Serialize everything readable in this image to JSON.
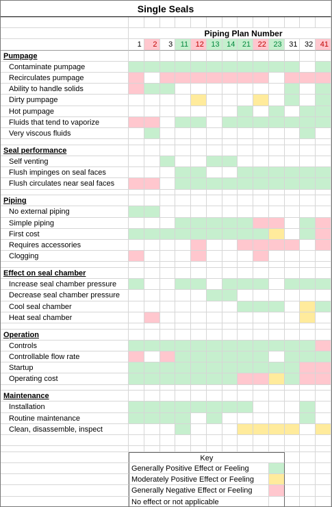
{
  "title": "Single Seals",
  "header": "Piping Plan Number",
  "plans": [
    {
      "number": 1,
      "tone": "n"
    },
    {
      "number": 2,
      "tone": "r"
    },
    {
      "number": 3,
      "tone": "n"
    },
    {
      "number": 11,
      "tone": "g"
    },
    {
      "number": 12,
      "tone": "r"
    },
    {
      "number": 13,
      "tone": "g"
    },
    {
      "number": 14,
      "tone": "g"
    },
    {
      "number": 21,
      "tone": "g"
    },
    {
      "number": 22,
      "tone": "r"
    },
    {
      "number": 23,
      "tone": "g"
    },
    {
      "number": 31,
      "tone": "n"
    },
    {
      "number": 32,
      "tone": "n"
    },
    {
      "number": 41,
      "tone": "r"
    }
  ],
  "sections": [
    {
      "title": "Pumpage",
      "rows": [
        {
          "label": "Contaminate pumpage",
          "cells": [
            "g",
            "g",
            "g",
            "g",
            "g",
            "g",
            "g",
            "g",
            "g",
            "g",
            "g",
            "n",
            "g"
          ]
        },
        {
          "label": "Recirculates pumpage",
          "cells": [
            "r",
            "n",
            "r",
            "r",
            "r",
            "r",
            "r",
            "r",
            "r",
            "n",
            "r",
            "r",
            "r"
          ]
        },
        {
          "label": "Ability to handle solids",
          "cells": [
            "r",
            "g",
            "g",
            "n",
            "n",
            "n",
            "n",
            "n",
            "n",
            "n",
            "g",
            "n",
            "g"
          ]
        },
        {
          "label": "Dirty pumpage",
          "cells": [
            "n",
            "n",
            "n",
            "n",
            "y",
            "n",
            "n",
            "n",
            "y",
            "n",
            "g",
            "n",
            "g"
          ]
        },
        {
          "label": "Hot pumpage",
          "cells": [
            "n",
            "n",
            "n",
            "n",
            "n",
            "n",
            "n",
            "g",
            "n",
            "g",
            "n",
            "g",
            "g"
          ]
        },
        {
          "label": "Fluids that tend to vaporize",
          "cells": [
            "r",
            "r",
            "n",
            "g",
            "g",
            "n",
            "g",
            "g",
            "g",
            "g",
            "g",
            "g",
            "g"
          ]
        },
        {
          "label": "Very viscous fluids",
          "cells": [
            "n",
            "g",
            "n",
            "n",
            "n",
            "n",
            "n",
            "n",
            "n",
            "n",
            "n",
            "g",
            "n"
          ]
        }
      ]
    },
    {
      "title": "Seal performance",
      "rows": [
        {
          "label": "Self venting",
          "cells": [
            "n",
            "n",
            "g",
            "n",
            "n",
            "g",
            "g",
            "n",
            "n",
            "n",
            "n",
            "n",
            "n"
          ]
        },
        {
          "label": "Flush impinges on seal faces",
          "cells": [
            "n",
            "n",
            "n",
            "g",
            "g",
            "n",
            "n",
            "g",
            "g",
            "g",
            "g",
            "g",
            "g"
          ]
        },
        {
          "label": "Flush circulates near seal faces",
          "cells": [
            "r",
            "r",
            "n",
            "g",
            "g",
            "g",
            "g",
            "g",
            "g",
            "g",
            "g",
            "g",
            "g"
          ]
        }
      ]
    },
    {
      "title": "Piping",
      "rows": [
        {
          "label": "No external piping",
          "cells": [
            "g",
            "g",
            "n",
            "n",
            "n",
            "n",
            "n",
            "n",
            "n",
            "n",
            "n",
            "n",
            "n"
          ]
        },
        {
          "label": "Simple piping",
          "cells": [
            "n",
            "n",
            "n",
            "g",
            "g",
            "g",
            "g",
            "g",
            "r",
            "r",
            "n",
            "g",
            "r"
          ]
        },
        {
          "label": "First cost",
          "cells": [
            "g",
            "g",
            "g",
            "g",
            "g",
            "g",
            "g",
            "g",
            "g",
            "y",
            "n",
            "g",
            "r"
          ]
        },
        {
          "label": "Requires accessories",
          "cells": [
            "n",
            "n",
            "n",
            "n",
            "r",
            "n",
            "n",
            "r",
            "r",
            "r",
            "r",
            "n",
            "r"
          ]
        },
        {
          "label": "Clogging",
          "cells": [
            "r",
            "n",
            "n",
            "n",
            "r",
            "n",
            "n",
            "n",
            "r",
            "n",
            "n",
            "n",
            "n"
          ]
        }
      ]
    },
    {
      "title": "Effect on seal chamber",
      "rows": [
        {
          "label": "Increase seal chamber pressure",
          "cells": [
            "g",
            "n",
            "n",
            "g",
            "g",
            "n",
            "g",
            "g",
            "g",
            "n",
            "g",
            "g",
            "g"
          ]
        },
        {
          "label": "Decrease seal chamber pressure",
          "cells": [
            "n",
            "n",
            "n",
            "n",
            "n",
            "g",
            "g",
            "n",
            "n",
            "n",
            "n",
            "n",
            "n"
          ]
        },
        {
          "label": "Cool seal chamber",
          "cells": [
            "n",
            "n",
            "n",
            "n",
            "n",
            "n",
            "n",
            "g",
            "g",
            "g",
            "n",
            "y",
            "g"
          ]
        },
        {
          "label": "Heat seal chamber",
          "cells": [
            "n",
            "r",
            "n",
            "n",
            "n",
            "n",
            "n",
            "n",
            "n",
            "n",
            "n",
            "y",
            "n"
          ]
        }
      ]
    },
    {
      "title": "Operation",
      "rows": [
        {
          "label": "Controls",
          "cells": [
            "g",
            "g",
            "g",
            "g",
            "g",
            "g",
            "g",
            "g",
            "g",
            "g",
            "g",
            "g",
            "r"
          ]
        },
        {
          "label": "Controllable flow rate",
          "cells": [
            "r",
            "n",
            "r",
            "g",
            "g",
            "g",
            "g",
            "g",
            "g",
            "n",
            "g",
            "g",
            "g"
          ]
        },
        {
          "label": "Startup",
          "cells": [
            "g",
            "g",
            "g",
            "g",
            "g",
            "g",
            "g",
            "g",
            "g",
            "g",
            "g",
            "r",
            "r"
          ]
        },
        {
          "label": "Operating cost",
          "cells": [
            "g",
            "g",
            "g",
            "g",
            "g",
            "g",
            "g",
            "r",
            "r",
            "y",
            "g",
            "r",
            "r"
          ]
        }
      ]
    },
    {
      "title": "Maintenance",
      "rows": [
        {
          "label": "Installation",
          "cells": [
            "g",
            "g",
            "g",
            "g",
            "g",
            "g",
            "g",
            "g",
            "n",
            "n",
            "n",
            "g",
            "n"
          ]
        },
        {
          "label": "Routine maintenance",
          "cells": [
            "g",
            "g",
            "g",
            "g",
            "n",
            "g",
            "n",
            "n",
            "n",
            "n",
            "n",
            "g",
            "n"
          ]
        },
        {
          "label": "Clean, disassemble, inspect",
          "cells": [
            "n",
            "n",
            "n",
            "g",
            "n",
            "n",
            "n",
            "y",
            "y",
            "y",
            "y",
            "n",
            "y"
          ]
        }
      ]
    }
  ],
  "key": {
    "title": "Key",
    "items": [
      {
        "label": "Generally Positive Effect or Feeling",
        "tone": "g"
      },
      {
        "label": "Moderately Positive Effect or Feeling",
        "tone": "y"
      },
      {
        "label": "Generally Negative Effect or Feeling",
        "tone": "r"
      },
      {
        "label": "No effect or not applicable",
        "tone": "n"
      }
    ]
  }
}
